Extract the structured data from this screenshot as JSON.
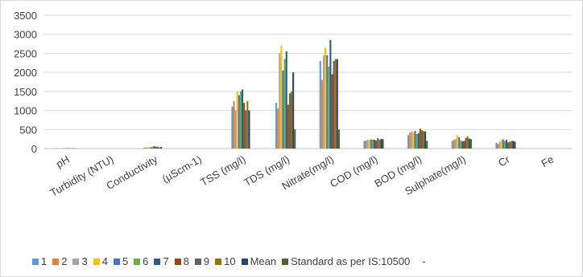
{
  "chart_data": {
    "type": "bar",
    "title": "",
    "xlabel": "",
    "ylabel": "",
    "ylim": [
      0,
      3500
    ],
    "yticks": [
      0,
      500,
      1000,
      1500,
      2000,
      2500,
      3000,
      3500
    ],
    "grid": true,
    "legend_position": "bottom",
    "categories": [
      "pH",
      "Turbidity (NTU)",
      "Conductivity",
      "(µScm-1)",
      "TSS (mg/l)",
      "TDS (mg/l)",
      "Nitrate(mg/l)",
      "COD (mg/l)",
      "BOD (mg/l)",
      "Sulphate(mg/l)",
      "Cr",
      "Fe"
    ],
    "series": [
      {
        "name": "1",
        "color": "#5b9bd5",
        "values": [
          8,
          0,
          20,
          0,
          1100,
          1200,
          2300,
          200,
          350,
          200,
          150,
          0
        ]
      },
      {
        "name": "2",
        "color": "#ed7d31",
        "values": [
          8,
          0,
          25,
          0,
          1250,
          1050,
          1800,
          210,
          420,
          230,
          120,
          0
        ]
      },
      {
        "name": "3",
        "color": "#a5a5a5",
        "values": [
          8,
          0,
          30,
          0,
          1000,
          2500,
          2450,
          230,
          450,
          250,
          180,
          0
        ]
      },
      {
        "name": "4",
        "color": "#ffc000",
        "values": [
          8,
          0,
          40,
          0,
          1500,
          2700,
          2650,
          220,
          430,
          350,
          230,
          0
        ]
      },
      {
        "name": "5",
        "color": "#4472c4",
        "values": [
          8,
          0,
          35,
          0,
          1400,
          2050,
          2450,
          240,
          460,
          300,
          240,
          0
        ]
      },
      {
        "name": "6",
        "color": "#70ad47",
        "values": [
          8,
          0,
          50,
          0,
          1500,
          2350,
          2150,
          230,
          380,
          220,
          200,
          0
        ]
      },
      {
        "name": "7",
        "color": "#255e91",
        "values": [
          8,
          0,
          60,
          0,
          1550,
          2550,
          2850,
          230,
          400,
          190,
          230,
          0
        ]
      },
      {
        "name": "8",
        "color": "#9e480e",
        "values": [
          8,
          0,
          45,
          0,
          1200,
          1150,
          1950,
          210,
          520,
          200,
          160,
          0
        ]
      },
      {
        "name": "9",
        "color": "#636363",
        "values": [
          8,
          0,
          50,
          0,
          1000,
          1450,
          2300,
          270,
          480,
          280,
          180,
          0
        ]
      },
      {
        "name": "10",
        "color": "#997300",
        "values": [
          8,
          0,
          30,
          0,
          1250,
          1500,
          2350,
          230,
          460,
          320,
          200,
          0
        ]
      },
      {
        "name": "Mean",
        "color": "#264478",
        "values": [
          8,
          0,
          40,
          0,
          1000,
          2000,
          2350,
          250,
          450,
          260,
          200,
          0
        ]
      },
      {
        "name": "Standard as per IS:10500",
        "color": "#43682b",
        "values": [
          8,
          0,
          0,
          0,
          0,
          500,
          500,
          250,
          200,
          250,
          180,
          0
        ]
      }
    ],
    "legend_trailing_text": "-"
  }
}
